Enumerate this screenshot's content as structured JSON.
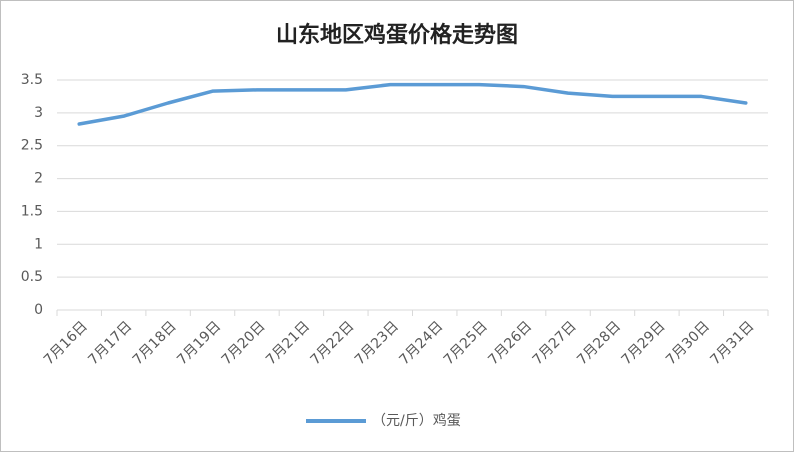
{
  "chart_data": {
    "type": "line",
    "title": "山东地区鸡蛋价格走势图",
    "categories": [
      "7月16日",
      "7月17日",
      "7月18日",
      "7月19日",
      "7月20日",
      "7月21日",
      "7月22日",
      "7月23日",
      "7月24日",
      "7月25日",
      "7月26日",
      "7月27日",
      "7月28日",
      "7月29日",
      "7月30日",
      "7月31日"
    ],
    "series": [
      {
        "name": "（元/斤）鸡蛋",
        "color": "#5b9bd5",
        "values": [
          2.83,
          2.95,
          3.15,
          3.33,
          3.35,
          3.35,
          3.35,
          3.43,
          3.43,
          3.43,
          3.4,
          3.3,
          3.25,
          3.25,
          3.25,
          3.15
        ]
      }
    ],
    "ylim": [
      0,
      3.5
    ],
    "yticks": [
      0,
      0.5,
      1,
      1.5,
      2,
      2.5,
      3,
      3.5
    ],
    "grid": true,
    "legend": "bottom"
  }
}
